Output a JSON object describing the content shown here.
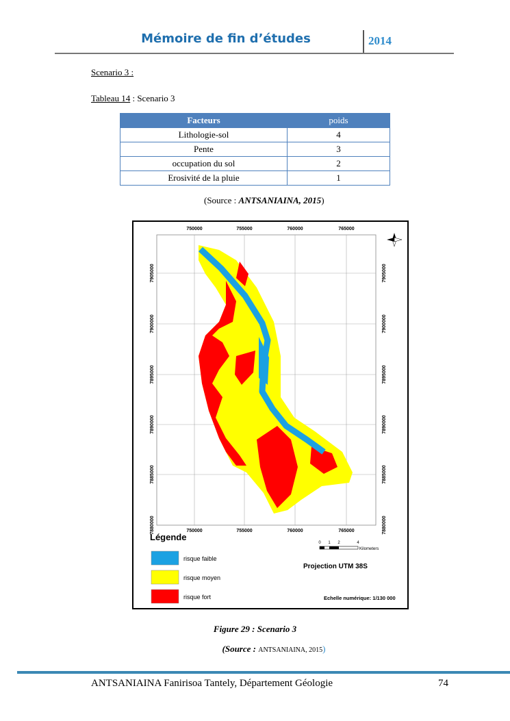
{
  "header": {
    "title": "Mémoire de fin d’études",
    "year": "2014"
  },
  "section": "Scenario 3 :",
  "table_caption": {
    "label": "Tableau 14",
    "text": " : Scenario 3"
  },
  "table": {
    "columns": [
      "Facteurs",
      "poids"
    ],
    "rows": [
      [
        "Lithologie-sol",
        4
      ],
      [
        "Pente",
        3
      ],
      [
        "occupation du sol",
        2
      ],
      [
        "Erosivité de la pluie",
        1
      ]
    ]
  },
  "table_source": {
    "prefix": "(Source : ",
    "author": "ANTSANIAINA, 2015",
    "suffix": ")"
  },
  "map": {
    "x_labels": [
      750000,
      755000,
      760000,
      765000
    ],
    "y_labels": [
      7905000,
      7900000,
      7895000,
      7890000,
      7885000,
      7880000
    ],
    "legend_title": "Légende",
    "legend": [
      {
        "label": "risque faible",
        "color": "#1ba1e2"
      },
      {
        "label": "risque moyen",
        "color": "#ffff00"
      },
      {
        "label": "risque fort",
        "color": "#ff0000"
      }
    ],
    "scale_ticks": [
      0,
      1,
      2,
      4
    ],
    "scale_unit": "Kilometers",
    "projection": "Projection UTM 38S",
    "scale": "Echelle numérique: 1/130 000"
  },
  "figure_caption": "Figure 29 : Scenario 3",
  "figure_source": {
    "prefix": "(Source : ",
    "author": "ANTSANIAINA, 2015",
    "suffix": ")"
  },
  "footer": {
    "author": "ANTSANIAINA Fanirisoa Tantely, Département Géologie",
    "page": "74"
  }
}
